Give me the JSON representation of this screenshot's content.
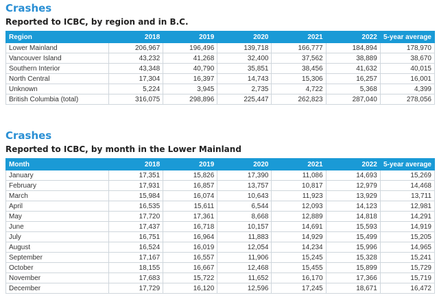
{
  "table1": {
    "title": "Crashes",
    "subtitle": "Reported to ICBC, by region and in B.C.",
    "headers": [
      "Region",
      "2018",
      "2019",
      "2020",
      "2021",
      "2022",
      "5-year average"
    ],
    "rows": [
      [
        "Lower Mainland",
        "206,967",
        "196,496",
        "139,718",
        "166,777",
        "184,894",
        "178,970"
      ],
      [
        "Vancouver Island",
        "43,232",
        "41,268",
        "32,400",
        "37,562",
        "38,889",
        "38,670"
      ],
      [
        "Southern Interior",
        "43,348",
        "40,790",
        "35,851",
        "38,456",
        "41,632",
        "40,015"
      ],
      [
        "North Central",
        "17,304",
        "16,397",
        "14,743",
        "15,306",
        "16,257",
        "16,001"
      ],
      [
        "Unknown",
        "5,224",
        "3,945",
        "2,735",
        "4,722",
        "5,368",
        "4,399"
      ],
      [
        "British Columbia (total)",
        "316,075",
        "298,896",
        "225,447",
        "262,823",
        "287,040",
        "278,056"
      ]
    ]
  },
  "table2": {
    "title": "Crashes",
    "subtitle": "Reported to ICBC, by month in the Lower Mainland",
    "headers": [
      "Month",
      "2018",
      "2019",
      "2020",
      "2021",
      "2022",
      "5-year average"
    ],
    "rows": [
      [
        "January",
        "17,351",
        "15,826",
        "17,390",
        "11,086",
        "14,693",
        "15,269"
      ],
      [
        "February",
        "17,931",
        "16,857",
        "13,757",
        "10,817",
        "12,979",
        "14,468"
      ],
      [
        "March",
        "15,984",
        "16,074",
        "10,643",
        "11,923",
        "13,929",
        "13,711"
      ],
      [
        "April",
        "16,535",
        "15,611",
        "6,544",
        "12,093",
        "14,123",
        "12,981"
      ],
      [
        "May",
        "17,720",
        "17,361",
        "8,668",
        "12,889",
        "14,818",
        "14,291"
      ],
      [
        "June",
        "17,437",
        "16,718",
        "10,157",
        "14,691",
        "15,593",
        "14,919"
      ],
      [
        "July",
        "16,751",
        "16,964",
        "11,883",
        "14,929",
        "15,499",
        "15,205"
      ],
      [
        "August",
        "16,524",
        "16,019",
        "12,054",
        "14,234",
        "15,996",
        "14,965"
      ],
      [
        "September",
        "17,167",
        "16,557",
        "11,906",
        "15,245",
        "15,328",
        "15,241"
      ],
      [
        "October",
        "18,155",
        "16,667",
        "12,468",
        "15,455",
        "15,899",
        "15,729"
      ],
      [
        "November",
        "17,683",
        "15,722",
        "11,652",
        "16,170",
        "17,366",
        "15,719"
      ],
      [
        "December",
        "17,729",
        "16,120",
        "12,596",
        "17,245",
        "18,671",
        "16,472"
      ]
    ]
  },
  "colors": {
    "accent": "#2a8fd4",
    "header_bg": "#1a9ad6"
  }
}
